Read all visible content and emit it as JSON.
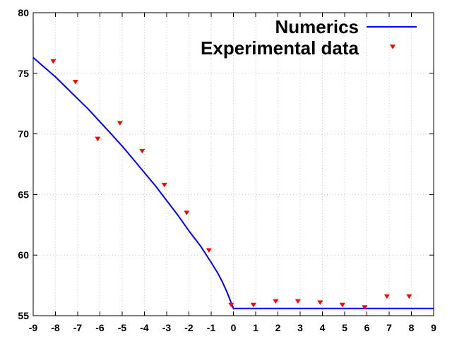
{
  "chart_data": {
    "type": "scatter",
    "title": "",
    "xlabel": "",
    "ylabel": "",
    "xlim": [
      -9,
      9
    ],
    "ylim": [
      55,
      80
    ],
    "xticks": [
      -9,
      -8,
      -7,
      -6,
      -5,
      -4,
      -3,
      -2,
      -1,
      0,
      1,
      2,
      3,
      4,
      5,
      6,
      7,
      8,
      9
    ],
    "yticks": [
      55,
      60,
      65,
      70,
      75,
      80
    ],
    "grid": true,
    "legend_position": "top-right",
    "series": [
      {
        "name": "Numerics",
        "kind": "line",
        "color": "#0000ff",
        "x": [
          -9,
          -8.5,
          -8,
          -7.5,
          -7,
          -6.5,
          -6,
          -5.5,
          -5,
          -4.5,
          -4,
          -3.5,
          -3,
          -2.5,
          -2,
          -1.5,
          -1,
          -0.7,
          -0.5,
          -0.3,
          -0.15,
          0,
          0.5,
          1,
          2,
          3,
          4,
          5,
          6,
          7,
          8,
          9
        ],
        "y": [
          76.3,
          75.5,
          74.7,
          73.8,
          72.9,
          72.0,
          71.0,
          70.0,
          69.0,
          67.9,
          66.8,
          65.7,
          64.5,
          63.3,
          62.0,
          60.8,
          59.4,
          58.5,
          57.8,
          57.0,
          56.3,
          55.6,
          55.6,
          55.6,
          55.6,
          55.6,
          55.6,
          55.6,
          55.6,
          55.6,
          55.6,
          55.6
        ]
      },
      {
        "name": "Experimental data",
        "kind": "points",
        "marker": "down-triangle",
        "color": "#ff0000",
        "x": [
          -8.1,
          -7.1,
          -6.1,
          -5.1,
          -4.1,
          -3.1,
          -2.1,
          -1.1,
          -0.1,
          0.9,
          1.9,
          2.9,
          3.9,
          4.9,
          5.9,
          6.9,
          7.9
        ],
        "y": [
          76.0,
          74.3,
          69.6,
          70.9,
          68.6,
          65.8,
          63.5,
          60.4,
          55.9,
          55.9,
          56.2,
          56.2,
          56.1,
          55.9,
          55.7,
          56.6,
          56.6
        ]
      }
    ]
  }
}
